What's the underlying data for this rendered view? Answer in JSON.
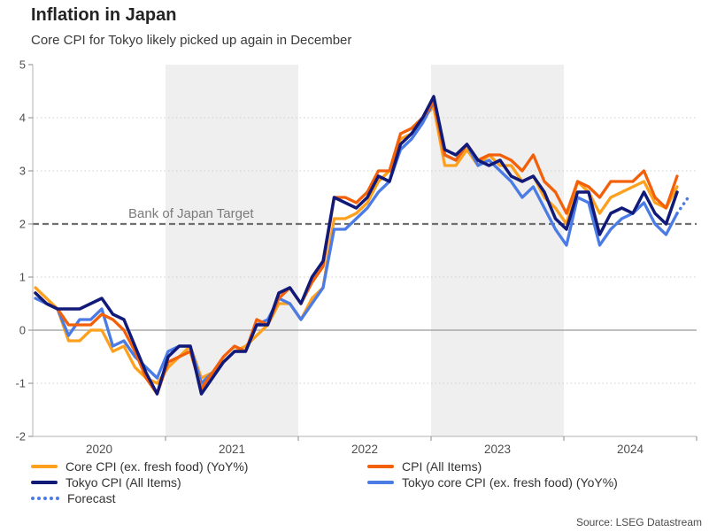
{
  "header": {
    "title": "Inflation in Japan",
    "subtitle": "Core CPI for Tokyo likely picked up again in December"
  },
  "footer": {
    "source": "Source: LSEG Datastream"
  },
  "chart_data": {
    "type": "line",
    "x_unit": "month",
    "months": [
      "2020-01",
      "2020-02",
      "2020-03",
      "2020-04",
      "2020-05",
      "2020-06",
      "2020-07",
      "2020-08",
      "2020-09",
      "2020-10",
      "2020-11",
      "2020-12",
      "2021-01",
      "2021-02",
      "2021-03",
      "2021-04",
      "2021-05",
      "2021-06",
      "2021-07",
      "2021-08",
      "2021-09",
      "2021-10",
      "2021-11",
      "2021-12",
      "2022-01",
      "2022-02",
      "2022-03",
      "2022-04",
      "2022-05",
      "2022-06",
      "2022-07",
      "2022-08",
      "2022-09",
      "2022-10",
      "2022-11",
      "2022-12",
      "2023-01",
      "2023-02",
      "2023-03",
      "2023-04",
      "2023-05",
      "2023-06",
      "2023-07",
      "2023-08",
      "2023-09",
      "2023-10",
      "2023-11",
      "2023-12",
      "2024-01",
      "2024-02",
      "2024-03",
      "2024-04",
      "2024-05",
      "2024-06",
      "2024-07",
      "2024-08",
      "2024-09",
      "2024-10",
      "2024-11"
    ],
    "series": [
      {
        "id": "core",
        "name": "Core CPI (ex. fresh food) (YoY%)",
        "color": "#FCA01E",
        "values": [
          0.8,
          0.6,
          0.4,
          -0.2,
          -0.2,
          0.0,
          0.0,
          -0.4,
          -0.3,
          -0.7,
          -0.9,
          -1.0,
          -0.7,
          -0.5,
          -0.3,
          -0.9,
          -0.8,
          -0.6,
          -0.4,
          -0.3,
          -0.1,
          0.1,
          0.5,
          0.5,
          0.2,
          0.6,
          0.8,
          2.1,
          2.1,
          2.2,
          2.4,
          2.8,
          3.0,
          3.6,
          3.7,
          4.0,
          4.2,
          3.1,
          3.1,
          3.4,
          3.1,
          3.3,
          3.1,
          3.1,
          2.8,
          2.9,
          2.5,
          2.3,
          2.0,
          2.8,
          2.6,
          2.2,
          2.5,
          2.6,
          2.7,
          2.8,
          2.4,
          2.3,
          2.7
        ]
      },
      {
        "id": "cpi",
        "name": "CPI (All Items)",
        "color": "#F2600A",
        "values": [
          0.7,
          0.5,
          0.4,
          0.1,
          0.1,
          0.1,
          0.3,
          0.2,
          0.0,
          -0.4,
          -0.9,
          -1.2,
          -0.6,
          -0.5,
          -0.4,
          -1.1,
          -0.8,
          -0.5,
          -0.3,
          -0.4,
          0.2,
          0.1,
          0.6,
          0.8,
          0.5,
          0.9,
          1.2,
          2.5,
          2.5,
          2.4,
          2.6,
          3.0,
          3.0,
          3.7,
          3.8,
          4.0,
          4.3,
          3.3,
          3.2,
          3.5,
          3.2,
          3.3,
          3.3,
          3.2,
          3.0,
          3.3,
          2.8,
          2.6,
          2.2,
          2.8,
          2.7,
          2.5,
          2.8,
          2.8,
          2.8,
          3.0,
          2.5,
          2.3,
          2.9
        ]
      },
      {
        "id": "tokyo",
        "name": "Tokyo CPI (All Items)",
        "color": "#111A78",
        "values": [
          0.7,
          0.5,
          0.4,
          0.4,
          0.4,
          0.5,
          0.6,
          0.3,
          0.2,
          -0.3,
          -0.8,
          -1.2,
          -0.5,
          -0.3,
          -0.3,
          -1.2,
          -0.9,
          -0.6,
          -0.4,
          -0.4,
          0.1,
          0.1,
          0.7,
          0.8,
          0.5,
          1.0,
          1.3,
          2.5,
          2.4,
          2.3,
          2.5,
          2.9,
          2.8,
          3.5,
          3.7,
          4.0,
          4.4,
          3.4,
          3.3,
          3.5,
          3.2,
          3.1,
          3.2,
          2.9,
          2.8,
          2.9,
          2.6,
          2.1,
          1.9,
          2.6,
          2.6,
          1.8,
          2.2,
          2.3,
          2.2,
          2.6,
          2.2,
          2.0,
          2.6
        ]
      },
      {
        "id": "tokyo_core",
        "name": "Tokyo core CPI (ex. fresh food) (YoY%)",
        "color": "#4B7BE5",
        "values": [
          0.6,
          0.5,
          0.4,
          -0.1,
          0.2,
          0.2,
          0.4,
          -0.3,
          -0.2,
          -0.5,
          -0.7,
          -0.9,
          -0.4,
          -0.3,
          -0.3,
          -1.0,
          -0.8,
          -0.6,
          -0.4,
          -0.4,
          0.1,
          0.2,
          0.6,
          0.5,
          0.2,
          0.5,
          0.8,
          1.9,
          1.9,
          2.1,
          2.3,
          2.6,
          2.8,
          3.4,
          3.6,
          3.9,
          4.3,
          3.3,
          3.2,
          3.5,
          3.1,
          3.2,
          3.0,
          2.8,
          2.5,
          2.7,
          2.3,
          1.9,
          1.6,
          2.5,
          2.4,
          1.6,
          1.9,
          2.1,
          2.2,
          2.4,
          2.0,
          1.8,
          2.2
        ]
      }
    ],
    "forecast": {
      "name": "Forecast",
      "color": "#4B7BE5",
      "style": "dotted",
      "months": [
        "2024-11",
        "2024-12"
      ],
      "values": [
        2.2,
        2.5
      ]
    },
    "target_line": {
      "value": 2,
      "label": "Bank of Japan Target",
      "color": "#6F6F6F",
      "style": "dashed"
    },
    "y_ticks": [
      5,
      4,
      3,
      2,
      1,
      0,
      -1,
      -2
    ],
    "ylim": [
      -2,
      5
    ],
    "x_tick_labels": [
      "2020",
      "2021",
      "2022",
      "2023",
      "2024"
    ],
    "shaded_year_bands": [
      "2021",
      "2023"
    ],
    "band_color": "#EFEFEF",
    "grid": "dotted horizontal at integers, solid zero line",
    "legend_position": "bottom"
  }
}
